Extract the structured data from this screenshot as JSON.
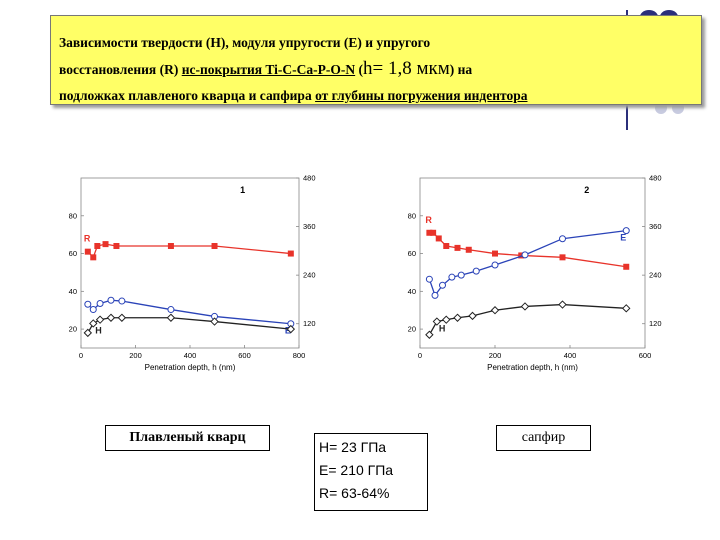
{
  "title": {
    "line1": "Зависимости твердости (H), модуля упругости (E) и упругого",
    "line2_a": "восстановления (R) ",
    "line2_u": "нс-покрытия  Ti-C-Ca-P-O-N",
    "line2_b": " (",
    "line2_big": "h= 1,8 мкм",
    "line2_c": ") на",
    "line3_a": "подложках плавленого кварца и сапфира ",
    "line3_u": "от глубины погружения индентора"
  },
  "labels": {
    "quartz": "Плавленый кварц",
    "props_h": "H= 23 ГПа",
    "props_e": "E= 210 ГПа",
    "props_r": "R= 63-64%",
    "sapphire": "сапфир"
  },
  "colors": {
    "R": "#e8332a",
    "E": "#2a43b8",
    "H": "#222222",
    "title_bg": "#ffff66",
    "deco": "#2b2f7a"
  },
  "chart_data": [
    {
      "type": "line",
      "panel_label": "1",
      "xlabel": "Penetration depth, h (nm)",
      "xlim": [
        0,
        800
      ],
      "x_ticks": [
        "0",
        "200",
        "400",
        "600",
        "800"
      ],
      "left_ylim": [
        10,
        100
      ],
      "left_ticks": [
        "20",
        "40",
        "60",
        "80"
      ],
      "right_ylim": [
        60,
        480
      ],
      "right_ticks": [
        "120",
        "240",
        "360",
        "480"
      ],
      "series": [
        {
          "name": "R",
          "axis": "left",
          "marker": "square",
          "x": [
            25,
            45,
            60,
            90,
            130,
            330,
            490,
            770
          ],
          "y": [
            61,
            58,
            64,
            65,
            64,
            64,
            64,
            60
          ]
        },
        {
          "name": "E",
          "axis": "right",
          "marker": "circle",
          "x": [
            25,
            45,
            70,
            110,
            150,
            330,
            490,
            770
          ],
          "y": [
            168,
            155,
            170,
            178,
            176,
            155,
            138,
            120
          ]
        },
        {
          "name": "H",
          "axis": "left",
          "marker": "diamond",
          "x": [
            25,
            45,
            70,
            110,
            150,
            330,
            490,
            770
          ],
          "y": [
            18,
            23,
            25,
            26,
            26,
            26,
            24,
            20
          ]
        }
      ]
    },
    {
      "type": "line",
      "panel_label": "2",
      "xlabel": "Penetration depth, h (nm)",
      "xlim": [
        0,
        600
      ],
      "x_ticks": [
        "0",
        "200",
        "400",
        "600"
      ],
      "left_ylim": [
        10,
        100
      ],
      "left_ticks": [
        "20",
        "40",
        "60",
        "80"
      ],
      "right_ylim": [
        60,
        480
      ],
      "right_ticks": [
        "120",
        "240",
        "360",
        "480"
      ],
      "series": [
        {
          "name": "R",
          "axis": "left",
          "marker": "square",
          "x": [
            25,
            35,
            50,
            70,
            100,
            130,
            200,
            270,
            380,
            550
          ],
          "y": [
            71,
            71,
            68,
            64,
            63,
            62,
            60,
            59,
            58,
            53
          ]
        },
        {
          "name": "E",
          "axis": "right",
          "marker": "circle",
          "x": [
            25,
            40,
            60,
            85,
            110,
            150,
            200,
            280,
            380,
            550
          ],
          "y": [
            230,
            190,
            215,
            235,
            240,
            250,
            265,
            290,
            330,
            350
          ]
        },
        {
          "name": "H",
          "axis": "left",
          "marker": "diamond",
          "x": [
            25,
            45,
            70,
            100,
            140,
            200,
            280,
            380,
            550
          ],
          "y": [
            17,
            24,
            25,
            26,
            27,
            30,
            32,
            33,
            31
          ]
        }
      ]
    }
  ]
}
